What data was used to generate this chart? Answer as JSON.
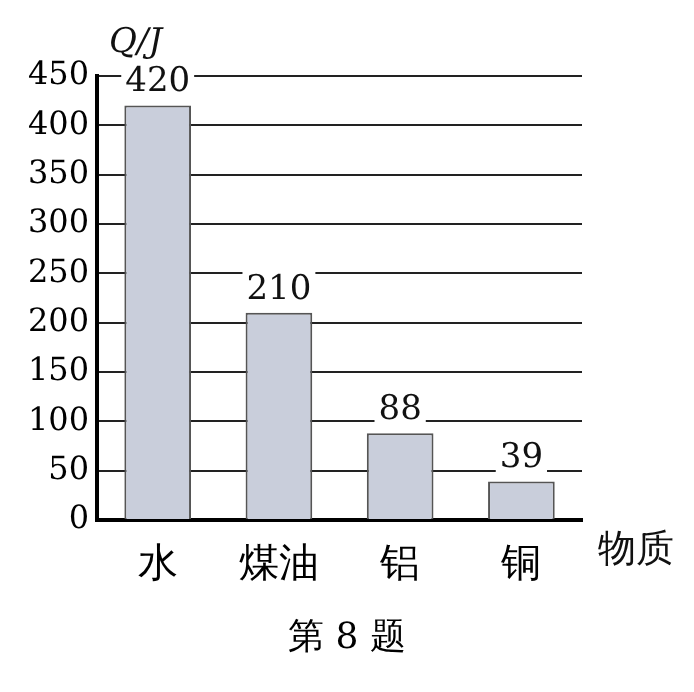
{
  "chart_data": {
    "type": "bar",
    "ylabel": "Q/J",
    "xlabel": "物质",
    "categories": [
      "水",
      "煤油",
      "铝",
      "铜"
    ],
    "values": [
      420,
      210,
      88,
      39
    ],
    "color": "#c9cedb",
    "ylim": [
      0,
      450
    ],
    "yticks": [
      0,
      50,
      100,
      150,
      200,
      250,
      300,
      350,
      400,
      450
    ],
    "grid": "y",
    "data_labels": true,
    "annotations": [
      "第 8 题"
    ]
  }
}
